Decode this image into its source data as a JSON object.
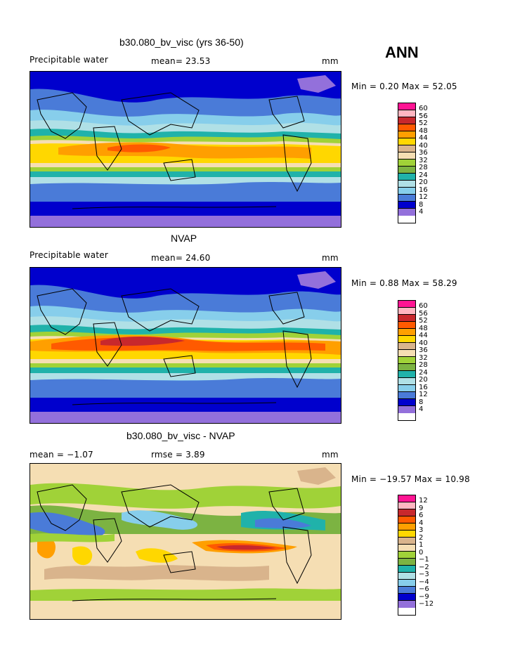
{
  "season": "ANN",
  "panels": [
    {
      "title": "b30.080_bv_visc (yrs 36-50)",
      "left_label": "Precipitable water",
      "center_label": "mean=  23.53",
      "units": "mm",
      "minmax": "Min =   0.20 Max =  52.05",
      "colorbar": {
        "colors": [
          "#ff1493",
          "#ffb6c1",
          "#c8282d",
          "#ff5a00",
          "#ff9f00",
          "#ffd700",
          "#d9b48c",
          "#f5deb3",
          "#a0d238",
          "#7cb342",
          "#20b2aa",
          "#b0e0e6",
          "#87ceeb",
          "#4a7bd8",
          "#0000cd",
          "#9370db"
        ],
        "labels": [
          "60",
          "56",
          "52",
          "48",
          "44",
          "40",
          "36",
          "32",
          "28",
          "24",
          "20",
          "16",
          "12",
          "8",
          "4"
        ]
      }
    },
    {
      "title": "NVAP",
      "left_label": "Precipitable water",
      "center_label": "mean=  24.60",
      "units": "mm",
      "minmax": "Min =   0.88 Max =  58.29",
      "colorbar": {
        "colors": [
          "#ff1493",
          "#ffb6c1",
          "#c8282d",
          "#ff5a00",
          "#ff9f00",
          "#ffd700",
          "#d9b48c",
          "#f5deb3",
          "#a0d238",
          "#7cb342",
          "#20b2aa",
          "#b0e0e6",
          "#87ceeb",
          "#4a7bd8",
          "#0000cd",
          "#9370db"
        ],
        "labels": [
          "60",
          "56",
          "52",
          "48",
          "44",
          "40",
          "36",
          "32",
          "28",
          "24",
          "20",
          "16",
          "12",
          "8",
          "4"
        ]
      }
    },
    {
      "title": "b30.080_bv_visc - NVAP",
      "left_label": "mean =   −1.07",
      "center_label": "rmse =    3.89",
      "units": "mm",
      "minmax": "Min = −19.57 Max =  10.98",
      "colorbar": {
        "colors": [
          "#ff1493",
          "#ffb6c1",
          "#c8282d",
          "#ff5a00",
          "#ff9f00",
          "#ffd700",
          "#d9b48c",
          "#f5deb3",
          "#a0d238",
          "#7cb342",
          "#20b2aa",
          "#b0e0e6",
          "#87ceeb",
          "#4a7bd8",
          "#0000cd",
          "#9370db"
        ],
        "labels": [
          "12",
          "9",
          "6",
          "4",
          "3",
          "2",
          "1",
          "0",
          "−1",
          "−2",
          "−3",
          "−4",
          "−6",
          "−9",
          "−12"
        ]
      }
    }
  ]
}
